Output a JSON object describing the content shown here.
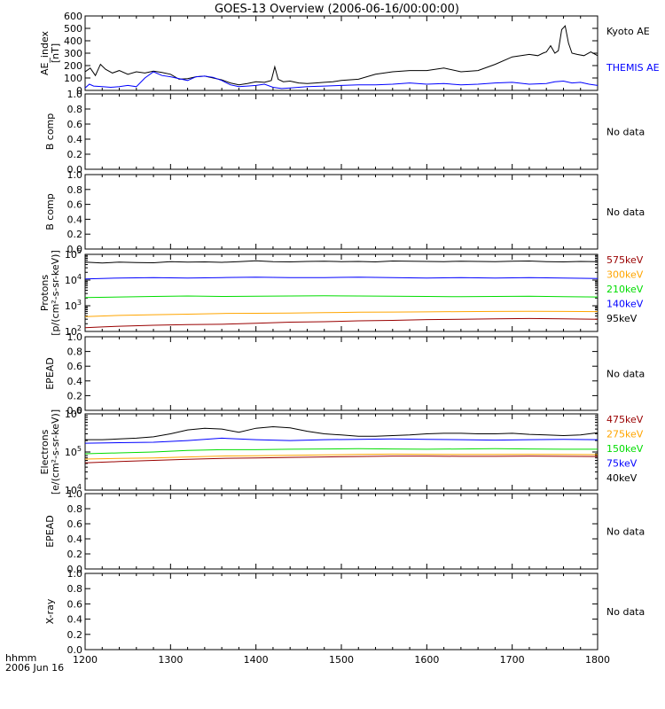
{
  "title": "GOES-13 Overview (2006-06-16/00:00:00)",
  "footer": {
    "line1": "hhmm",
    "line2": "2006 Jun 16"
  },
  "colors": {
    "black": "#000000",
    "blue": "#0000ff",
    "green": "#00dd00",
    "orange": "#ffa500",
    "darkred": "#990000"
  },
  "chart_data": [
    {
      "type": "line",
      "ylabel": [
        "AE_index",
        "[nT]"
      ],
      "xlim": [
        1200,
        1800
      ],
      "ylim": [
        0,
        600
      ],
      "scale": "linear",
      "yticks": [
        0,
        100,
        200,
        300,
        400,
        500,
        600
      ],
      "ytick_labels": [
        "0",
        "100",
        "200",
        "300",
        "400",
        "500",
        "600"
      ],
      "xticks": [
        1200,
        1300,
        1400,
        1500,
        1600,
        1700,
        1800
      ],
      "xtick_labels": [
        "1200",
        "1300",
        "1400",
        "1500",
        "1600",
        "1700",
        "1800"
      ],
      "legend": [
        {
          "text": "Kyoto AE",
          "color": "#000000"
        },
        {
          "text": "THEMIS AE",
          "color": "#0000ff"
        }
      ],
      "series": [
        {
          "color": "#000000",
          "x": [
            1200,
            1206,
            1212,
            1218,
            1224,
            1232,
            1240,
            1250,
            1260,
            1270,
            1280,
            1290,
            1300,
            1310,
            1320,
            1330,
            1340,
            1350,
            1360,
            1370,
            1380,
            1390,
            1400,
            1410,
            1418,
            1422,
            1426,
            1432,
            1440,
            1450,
            1460,
            1470,
            1480,
            1490,
            1500,
            1520,
            1540,
            1560,
            1580,
            1600,
            1620,
            1640,
            1660,
            1680,
            1700,
            1720,
            1730,
            1736,
            1740,
            1745,
            1750,
            1754,
            1758,
            1762,
            1766,
            1770,
            1776,
            1784,
            1792,
            1800
          ],
          "y": [
            150,
            180,
            120,
            210,
            170,
            140,
            160,
            130,
            150,
            140,
            155,
            145,
            130,
            90,
            95,
            110,
            115,
            100,
            85,
            60,
            45,
            55,
            70,
            65,
            80,
            190,
            90,
            70,
            75,
            60,
            55,
            60,
            65,
            70,
            80,
            90,
            130,
            150,
            160,
            160,
            180,
            150,
            160,
            210,
            270,
            290,
            280,
            300,
            310,
            360,
            300,
            320,
            490,
            520,
            380,
            300,
            290,
            280,
            310,
            280
          ]
        },
        {
          "color": "#0000ff",
          "x": [
            1200,
            1205,
            1210,
            1220,
            1230,
            1240,
            1250,
            1260,
            1270,
            1280,
            1290,
            1300,
            1310,
            1320,
            1330,
            1340,
            1350,
            1360,
            1370,
            1380,
            1390,
            1400,
            1410,
            1420,
            1430,
            1440,
            1460,
            1480,
            1500,
            1520,
            1540,
            1560,
            1580,
            1600,
            1620,
            1640,
            1660,
            1680,
            1700,
            1720,
            1740,
            1750,
            1760,
            1770,
            1780,
            1790,
            1800
          ],
          "y": [
            20,
            50,
            35,
            30,
            25,
            30,
            40,
            30,
            100,
            150,
            120,
            110,
            95,
            80,
            110,
            115,
            105,
            80,
            45,
            30,
            35,
            40,
            50,
            25,
            15,
            20,
            30,
            35,
            40,
            45,
            45,
            50,
            60,
            50,
            55,
            45,
            50,
            60,
            65,
            50,
            55,
            70,
            75,
            60,
            65,
            50,
            40
          ]
        }
      ]
    },
    {
      "type": "line",
      "ylabel": [
        "B comp"
      ],
      "xlim": [
        1200,
        1800
      ],
      "ylim": [
        0,
        1
      ],
      "scale": "linear",
      "yticks": [
        0,
        0.2,
        0.4,
        0.6,
        0.8,
        1.0
      ],
      "ytick_labels": [
        "0.0",
        "0.2",
        "0.4",
        "0.6",
        "0.8",
        "1.0"
      ],
      "legend": [
        {
          "text": "No data",
          "color": "#000000"
        }
      ],
      "series": []
    },
    {
      "type": "line",
      "ylabel": [
        "B comp"
      ],
      "xlim": [
        1200,
        1800
      ],
      "ylim": [
        0,
        1
      ],
      "scale": "linear",
      "yticks": [
        0,
        0.2,
        0.4,
        0.6,
        0.8,
        1.0
      ],
      "ytick_labels": [
        "0.0",
        "0.2",
        "0.4",
        "0.6",
        "0.8",
        "1.0"
      ],
      "legend": [
        {
          "text": "No data",
          "color": "#000000"
        }
      ],
      "series": []
    },
    {
      "type": "line",
      "ylabel": [
        "Protons",
        "[p/(cm²-s-sr-keV)]"
      ],
      "xlim": [
        1200,
        1800
      ],
      "ylim": [
        100,
        100000
      ],
      "scale": "log",
      "yticks": [
        100,
        1000,
        10000,
        100000
      ],
      "ytick_labels": [
        [
          "10",
          "2"
        ],
        [
          "10",
          "3"
        ],
        [
          "10",
          "4"
        ],
        [
          "10",
          "5"
        ]
      ],
      "legend": [
        {
          "text": "575keV",
          "color": "#990000"
        },
        {
          "text": "300keV",
          "color": "#ffa500"
        },
        {
          "text": "210keV",
          "color": "#00dd00"
        },
        {
          "text": "140keV",
          "color": "#0000ff"
        },
        {
          "text": "95keV",
          "color": "#000000"
        }
      ],
      "series": [
        {
          "color": "#000000",
          "x": [
            1200,
            1220,
            1240,
            1260,
            1280,
            1300,
            1320,
            1340,
            1360,
            1380,
            1400,
            1420,
            1440,
            1460,
            1480,
            1500,
            1520,
            1540,
            1560,
            1580,
            1600,
            1620,
            1640,
            1660,
            1680,
            1700,
            1720,
            1740,
            1760,
            1780,
            1800
          ],
          "y": [
            50000,
            46000,
            50000,
            48000,
            47000,
            52000,
            50000,
            51000,
            49000,
            52000,
            56000,
            52000,
            51000,
            53000,
            54000,
            52000,
            53000,
            51000,
            55000,
            54000,
            53000,
            52000,
            54000,
            53000,
            52000,
            54000,
            55000,
            52000,
            51000,
            53000,
            52000
          ]
        },
        {
          "color": "#0000ff",
          "x": [
            1200,
            1240,
            1280,
            1320,
            1360,
            1400,
            1440,
            1480,
            1520,
            1560,
            1600,
            1640,
            1680,
            1720,
            1760,
            1800
          ],
          "y": [
            11000,
            12000,
            12500,
            12000,
            12500,
            13000,
            12500,
            12500,
            13000,
            12500,
            12000,
            12500,
            12000,
            12500,
            12000,
            11500
          ]
        },
        {
          "color": "#00dd00",
          "x": [
            1200,
            1240,
            1280,
            1320,
            1360,
            1400,
            1440,
            1480,
            1520,
            1560,
            1600,
            1640,
            1680,
            1720,
            1760,
            1800
          ],
          "y": [
            2100,
            2200,
            2300,
            2400,
            2300,
            2350,
            2400,
            2450,
            2400,
            2350,
            2300,
            2250,
            2300,
            2350,
            2250,
            2200
          ]
        },
        {
          "color": "#ffa500",
          "x": [
            1200,
            1240,
            1280,
            1320,
            1360,
            1400,
            1440,
            1480,
            1520,
            1560,
            1600,
            1640,
            1680,
            1720,
            1760,
            1800
          ],
          "y": [
            380,
            420,
            450,
            470,
            500,
            510,
            520,
            540,
            560,
            570,
            580,
            590,
            600,
            610,
            600,
            590
          ]
        },
        {
          "color": "#990000",
          "x": [
            1200,
            1220,
            1240,
            1280,
            1320,
            1360,
            1400,
            1440,
            1480,
            1520,
            1560,
            1600,
            1640,
            1680,
            1720,
            1760,
            1800
          ],
          "y": [
            140,
            150,
            160,
            175,
            185,
            190,
            210,
            230,
            240,
            260,
            270,
            290,
            300,
            310,
            320,
            310,
            300
          ]
        }
      ]
    },
    {
      "type": "line",
      "ylabel": [
        "EPEAD"
      ],
      "xlim": [
        1200,
        1800
      ],
      "ylim": [
        0,
        1
      ],
      "scale": "linear",
      "yticks": [
        0,
        0.2,
        0.4,
        0.6,
        0.8,
        1.0
      ],
      "ytick_labels": [
        "0.0",
        "0.2",
        "0.4",
        "0.6",
        "0.8",
        "1.0"
      ],
      "legend": [
        {
          "text": "No data",
          "color": "#000000"
        }
      ],
      "series": []
    },
    {
      "type": "line",
      "ylabel": [
        "Electrons",
        "[e/(cm²-s-sr-keV)]"
      ],
      "xlim": [
        1200,
        1800
      ],
      "ylim": [
        10000,
        1000000
      ],
      "scale": "log",
      "yticks": [
        10000,
        100000,
        1000000
      ],
      "ytick_labels": [
        [
          "10",
          "4"
        ],
        [
          "10",
          "5"
        ],
        [
          "10",
          "6"
        ]
      ],
      "legend": [
        {
          "text": "475keV",
          "color": "#990000"
        },
        {
          "text": "275keV",
          "color": "#ffa500"
        },
        {
          "text": "150keV",
          "color": "#00dd00"
        },
        {
          "text": "75keV",
          "color": "#0000ff"
        },
        {
          "text": "40keV",
          "color": "#000000"
        }
      ],
      "series": [
        {
          "color": "#000000",
          "x": [
            1200,
            1220,
            1240,
            1260,
            1280,
            1300,
            1320,
            1340,
            1360,
            1380,
            1400,
            1420,
            1440,
            1460,
            1480,
            1500,
            1520,
            1540,
            1560,
            1580,
            1600,
            1620,
            1640,
            1660,
            1680,
            1700,
            1720,
            1740,
            1760,
            1780,
            1800
          ],
          "y": [
            210000,
            210000,
            220000,
            230000,
            250000,
            300000,
            380000,
            420000,
            400000,
            330000,
            420000,
            460000,
            430000,
            350000,
            300000,
            280000,
            260000,
            260000,
            270000,
            280000,
            300000,
            310000,
            310000,
            300000,
            300000,
            310000,
            290000,
            280000,
            270000,
            280000,
            320000
          ]
        },
        {
          "color": "#0000ff",
          "x": [
            1200,
            1240,
            1280,
            1320,
            1360,
            1400,
            1440,
            1480,
            1520,
            1560,
            1600,
            1640,
            1680,
            1720,
            1760,
            1800
          ],
          "y": [
            170000,
            175000,
            180000,
            200000,
            230000,
            210000,
            200000,
            210000,
            215000,
            220000,
            215000,
            210000,
            205000,
            210000,
            215000,
            210000
          ]
        },
        {
          "color": "#00dd00",
          "x": [
            1200,
            1240,
            1280,
            1320,
            1360,
            1400,
            1440,
            1480,
            1520,
            1560,
            1600,
            1640,
            1680,
            1720,
            1760,
            1800
          ],
          "y": [
            90000,
            95000,
            100000,
            110000,
            115000,
            115000,
            118000,
            120000,
            122000,
            120000,
            118000,
            120000,
            122000,
            120000,
            118000,
            118000
          ]
        },
        {
          "color": "#ffa500",
          "x": [
            1200,
            1240,
            1280,
            1320,
            1360,
            1400,
            1440,
            1480,
            1520,
            1560,
            1600,
            1640,
            1680,
            1720,
            1760,
            1800
          ],
          "y": [
            65000,
            68000,
            70000,
            74000,
            78000,
            80000,
            82000,
            84000,
            86000,
            88000,
            87000,
            86000,
            86000,
            87000,
            86000,
            85000
          ]
        },
        {
          "color": "#990000",
          "x": [
            1200,
            1240,
            1280,
            1320,
            1360,
            1400,
            1440,
            1480,
            1520,
            1560,
            1600,
            1640,
            1680,
            1720,
            1760,
            1800
          ],
          "y": [
            52000,
            56000,
            60000,
            64000,
            68000,
            70000,
            72000,
            74000,
            76000,
            78000,
            78000,
            77000,
            77000,
            78000,
            77000,
            76000
          ]
        }
      ]
    },
    {
      "type": "line",
      "ylabel": [
        "EPEAD"
      ],
      "xlim": [
        1200,
        1800
      ],
      "ylim": [
        0,
        1
      ],
      "scale": "linear",
      "yticks": [
        0,
        0.2,
        0.4,
        0.6,
        0.8,
        1.0
      ],
      "ytick_labels": [
        "0.0",
        "0.2",
        "0.4",
        "0.6",
        "0.8",
        "1.0"
      ],
      "legend": [
        {
          "text": "No data",
          "color": "#000000"
        }
      ],
      "series": []
    },
    {
      "type": "line",
      "ylabel": [
        "X-ray"
      ],
      "xlim": [
        1200,
        1800
      ],
      "ylim": [
        0,
        1
      ],
      "scale": "linear",
      "yticks": [
        0,
        0.2,
        0.4,
        0.6,
        0.8,
        1.0
      ],
      "ytick_labels": [
        "0.0",
        "0.2",
        "0.4",
        "0.6",
        "0.8",
        "1.0"
      ],
      "legend": [
        {
          "text": "No data",
          "color": "#000000"
        }
      ],
      "series": []
    }
  ]
}
